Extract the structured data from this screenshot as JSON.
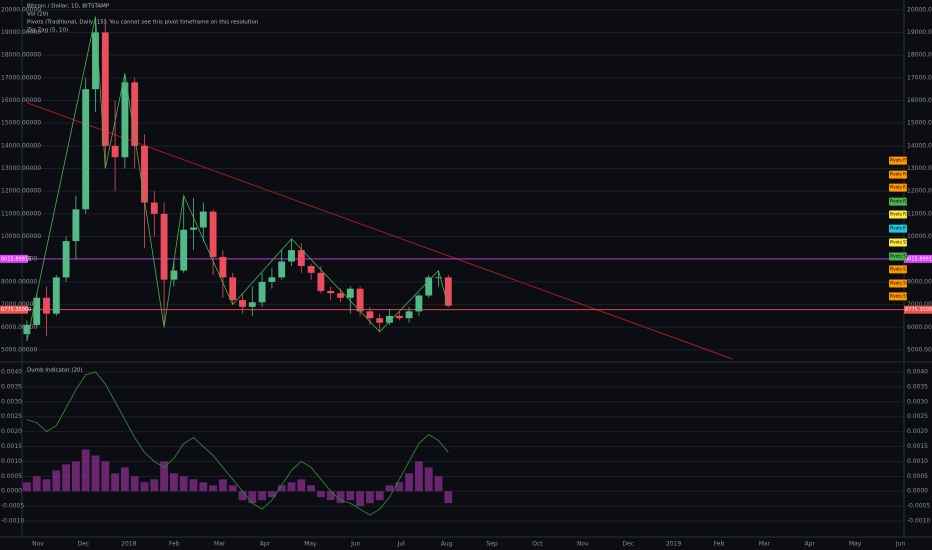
{
  "chart_data": [
    {
      "type": "candlestick",
      "title": "Bitcoin / Dollar, 1D, BITSTAMP",
      "indicator_labels": [
        "Vol (20)",
        "Pivots (Traditional, Daily, 15): You cannot see this pivot timeframe on this resolution",
        "Zig Zag (5, 10)"
      ],
      "x_labels": [
        "Nov",
        "Dec",
        "2018",
        "Feb",
        "Mar",
        "Apr",
        "May",
        "Jun",
        "Jul",
        "Aug",
        "Sep",
        "Oct",
        "Nov",
        "Dec",
        "2019",
        "Feb",
        "Mar",
        "Apr",
        "May",
        "Jun"
      ],
      "open": [
        5700,
        6100,
        7300,
        6600,
        8200,
        9800,
        11200,
        16500,
        19000,
        14000,
        13500,
        16800,
        14000,
        11500,
        11000,
        8100,
        8500,
        10300,
        10400,
        11100,
        9100,
        8200,
        7200,
        6900,
        7100,
        8000,
        8200,
        8900,
        9400,
        8700,
        8400,
        7600,
        7500,
        7300,
        7700,
        6700,
        6400,
        6200,
        6500,
        6400,
        6700,
        7400,
        8200,
        8200
      ],
      "high": [
        6300,
        7500,
        7800,
        8300,
        10000,
        11800,
        17000,
        19700,
        19600,
        16000,
        17200,
        17000,
        14500,
        12000,
        11500,
        9000,
        11800,
        11700,
        11500,
        11200,
        9400,
        8400,
        7500,
        7800,
        8400,
        8600,
        9400,
        9900,
        9700,
        8800,
        8700,
        7800,
        7700,
        7800,
        7800,
        6900,
        6600,
        6800,
        6700,
        6900,
        7500,
        8300,
        8500,
        8300
      ],
      "low": [
        5400,
        6000,
        5600,
        6500,
        8000,
        9000,
        11000,
        15500,
        13000,
        12000,
        13000,
        13000,
        9500,
        10000,
        6000,
        7800,
        8400,
        9400,
        9800,
        8300,
        7300,
        7000,
        6600,
        6500,
        6900,
        7700,
        8100,
        8700,
        8400,
        8100,
        7500,
        7200,
        7100,
        6600,
        6500,
        6100,
        5800,
        6100,
        6300,
        6200,
        6500,
        7300,
        7800,
        6900
      ],
      "close": [
        6100,
        7300,
        6600,
        8200,
        9800,
        11200,
        16500,
        19000,
        14000,
        13500,
        16800,
        14000,
        11500,
        11000,
        8100,
        8500,
        10300,
        10400,
        11100,
        9100,
        8200,
        7200,
        6900,
        7100,
        8000,
        8200,
        8900,
        9400,
        8700,
        8400,
        7600,
        7500,
        7300,
        7700,
        6700,
        6400,
        6200,
        6500,
        6400,
        6700,
        7400,
        8200,
        8200,
        6950
      ],
      "up_color": "#53b987",
      "down_color": "#eb4d5c",
      "ylim": [
        4600,
        20300
      ],
      "yticks": [
        {
          "value": 5000,
          "label": "5000.00000"
        },
        {
          "value": 6000,
          "label": "6000.00000"
        },
        {
          "value": 7000,
          "label": "7000.00000"
        },
        {
          "value": 8000,
          "label": "8000.00000"
        },
        {
          "value": 9000,
          "label": "9000.00000"
        },
        {
          "value": 10000,
          "label": "10000.00000"
        },
        {
          "value": 11000,
          "label": "11000.00000"
        },
        {
          "value": 12000,
          "label": "12000.00000"
        },
        {
          "value": 13000,
          "label": "13000.00000"
        },
        {
          "value": 14000,
          "label": "14000.00000"
        },
        {
          "value": 15000,
          "label": "15000.00000"
        },
        {
          "value": 16000,
          "label": "16000.00000"
        },
        {
          "value": 17000,
          "label": "17000.00000"
        },
        {
          "value": 18000,
          "label": "18000.00000"
        },
        {
          "value": 19000,
          "label": "19000.00000"
        },
        {
          "value": 20000,
          "label": "20000.00000"
        }
      ],
      "price_lines": [
        {
          "value": 9015.89915,
          "label": "9015.89915",
          "color": "#e040fb"
        },
        {
          "value": 6775.35,
          "label": "6775.35000",
          "color": "#ef5350"
        }
      ],
      "trendline": {
        "points": [
          [
            0,
            15900
          ],
          [
            72,
            4600
          ]
        ],
        "color": "#a31d1d"
      },
      "zigzag": {
        "points": [
          [
            0,
            5400
          ],
          [
            7,
            19700
          ],
          [
            8,
            13000
          ],
          [
            10,
            17200
          ],
          [
            14,
            6000
          ],
          [
            16,
            11800
          ],
          [
            21,
            7000
          ],
          [
            27,
            9900
          ],
          [
            36,
            5800
          ],
          [
            42,
            8500
          ],
          [
            43,
            6900
          ]
        ],
        "color": "#4caf50"
      },
      "pivots": [
        {
          "label": "Pivots R5",
          "value": 13350,
          "color": "#ff9800"
        },
        {
          "label": "Pivots R4",
          "value": 12730,
          "color": "#ff9800"
        },
        {
          "label": "Pivots R3",
          "value": 12160,
          "color": "#ff9800"
        },
        {
          "label": "Pivots R2",
          "value": 11540,
          "color": "#4caf50"
        },
        {
          "label": "Pivots R1",
          "value": 10970,
          "color": "#ffeb3b"
        },
        {
          "label": "Pivots P",
          "value": 10350,
          "color": "#26c6da"
        },
        {
          "label": "Pivots S1",
          "value": 9740,
          "color": "#ffeb3b"
        },
        {
          "label": "Pivots S2",
          "value": 9120,
          "color": "#4caf50"
        },
        {
          "label": "Pivots S3",
          "value": 8550,
          "color": "#ff9800"
        },
        {
          "label": "Pivots S4",
          "value": 7930,
          "color": "#ff9800"
        },
        {
          "label": "Pivots S5",
          "value": 7360,
          "color": "#ff9800"
        }
      ]
    },
    {
      "type": "line",
      "title": "Dumb Indicator (20)",
      "ylim": [
        -0.0013,
        0.0042
      ],
      "yticks": [
        {
          "value": -0.001,
          "label": "-0.0010"
        },
        {
          "value": -0.0005,
          "label": "-0.0005"
        },
        {
          "value": 0,
          "label": "0.0000"
        },
        {
          "value": 0.0005,
          "label": "0.0005"
        },
        {
          "value": 0.001,
          "label": "0.0010"
        },
        {
          "value": 0.0015,
          "label": "0.0015"
        },
        {
          "value": 0.002,
          "label": "0.0020"
        },
        {
          "value": 0.0025,
          "label": "0.0025"
        },
        {
          "value": 0.003,
          "label": "0.0030"
        },
        {
          "value": 0.0035,
          "label": "0.0035"
        },
        {
          "value": 0.004,
          "label": "0.0040"
        }
      ],
      "line": {
        "color": "#2e7d32",
        "values": [
          0.0024,
          0.0023,
          0.002,
          0.0022,
          0.0028,
          0.0034,
          0.0039,
          0.004,
          0.0036,
          0.003,
          0.0024,
          0.0018,
          0.0013,
          0.001,
          0.0008,
          0.0011,
          0.0016,
          0.0018,
          0.0015,
          0.0012,
          0.0008,
          0.0004,
          0.0,
          -0.0004,
          -0.0006,
          -0.0003,
          0.0002,
          0.0007,
          0.001,
          0.0008,
          0.0004,
          0.0,
          -0.0003,
          -0.0004,
          -0.0006,
          -0.0008,
          -0.0006,
          -0.0002,
          0.0004,
          0.001,
          0.0016,
          0.0019,
          0.0017,
          0.0013
        ]
      },
      "histogram": {
        "color": "#7b2a80",
        "values": [
          0.0003,
          0.0005,
          0.0004,
          0.0007,
          0.0009,
          0.001,
          0.0014,
          0.0012,
          0.001,
          0.0006,
          0.0008,
          0.0005,
          0.0003,
          0.0004,
          0.001,
          0.0006,
          0.0005,
          0.0004,
          0.0003,
          0.0002,
          0.0004,
          0.0002,
          -0.0003,
          -0.0004,
          -0.0003,
          -0.0002,
          0.0002,
          0.0003,
          0.0004,
          0.0002,
          -0.0002,
          -0.0003,
          -0.0004,
          -0.0003,
          -0.0005,
          -0.0004,
          -0.0003,
          0.0002,
          0.0003,
          0.0006,
          0.001,
          0.0008,
          0.0005,
          -0.0004
        ]
      }
    }
  ]
}
